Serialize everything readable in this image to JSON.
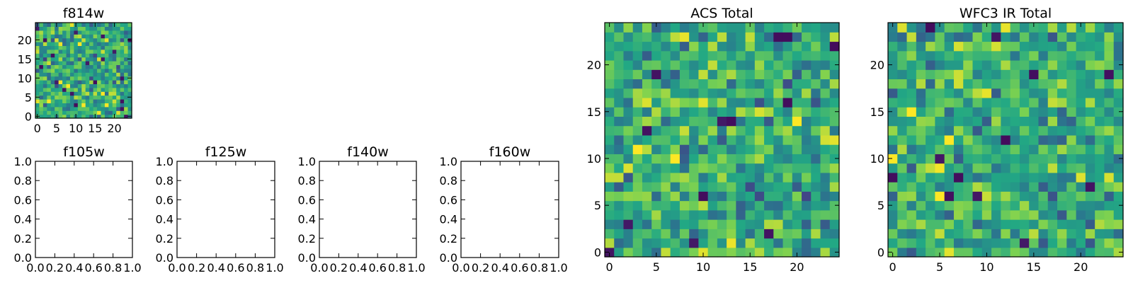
{
  "figure": {
    "panels": [
      {
        "id": "f814w",
        "title": "f814w",
        "kind": "image",
        "xticks": [
          "0",
          "5",
          "10",
          "15",
          "20"
        ],
        "yticks": [
          "0",
          "5",
          "10",
          "15",
          "20"
        ]
      },
      {
        "id": "f105w",
        "title": "f105w",
        "kind": "empty",
        "xticks": [
          "0.0",
          "0.2",
          "0.4",
          "0.6",
          "0.8",
          "1.0"
        ],
        "yticks": [
          "0.0",
          "0.2",
          "0.4",
          "0.6",
          "0.8",
          "1.0"
        ]
      },
      {
        "id": "f125w",
        "title": "f125w",
        "kind": "empty",
        "xticks": [
          "0.0",
          "0.2",
          "0.4",
          "0.6",
          "0.8",
          "1.0"
        ],
        "yticks": [
          "0.0",
          "0.2",
          "0.4",
          "0.6",
          "0.8",
          "1.0"
        ]
      },
      {
        "id": "f140w",
        "title": "f140w",
        "kind": "empty",
        "xticks": [
          "0.0",
          "0.2",
          "0.4",
          "0.6",
          "0.8",
          "1.0"
        ],
        "yticks": [
          "0.0",
          "0.2",
          "0.4",
          "0.6",
          "0.8",
          "1.0"
        ]
      },
      {
        "id": "f160w",
        "title": "f160w",
        "kind": "empty",
        "xticks": [
          "0.0",
          "0.2",
          "0.4",
          "0.6",
          "0.8",
          "1.0"
        ],
        "yticks": [
          "0.0",
          "0.2",
          "0.4",
          "0.6",
          "0.8",
          "1.0"
        ]
      },
      {
        "id": "acs_total",
        "title": "ACS Total",
        "kind": "image",
        "xticks": [
          "0",
          "5",
          "10",
          "15",
          "20"
        ],
        "yticks": [
          "0",
          "5",
          "10",
          "15",
          "20"
        ]
      },
      {
        "id": "wfc3_total",
        "title": "WFC3 IR Total",
        "kind": "image",
        "xticks": [
          "0",
          "5",
          "10",
          "15",
          "20"
        ],
        "yticks": [
          "0",
          "5",
          "10",
          "15",
          "20"
        ]
      }
    ]
  },
  "chart_data": [
    {
      "type": "heatmap",
      "title": "f814w",
      "grid_size": [
        25,
        25
      ],
      "xlim": [
        -0.5,
        24.5
      ],
      "ylim": [
        -0.5,
        24.5
      ],
      "colormap": "viridis",
      "values": "random noise (pixel values not legible)"
    },
    {
      "type": "line",
      "title": "f105w",
      "series": [],
      "xlim": [
        0,
        1
      ],
      "ylim": [
        0,
        1
      ]
    },
    {
      "type": "line",
      "title": "f125w",
      "series": [],
      "xlim": [
        0,
        1
      ],
      "ylim": [
        0,
        1
      ]
    },
    {
      "type": "line",
      "title": "f140w",
      "series": [],
      "xlim": [
        0,
        1
      ],
      "ylim": [
        0,
        1
      ]
    },
    {
      "type": "line",
      "title": "f160w",
      "series": [],
      "xlim": [
        0,
        1
      ],
      "ylim": [
        0,
        1
      ]
    },
    {
      "type": "heatmap",
      "title": "ACS Total",
      "grid_size": [
        25,
        25
      ],
      "xlim": [
        -0.5,
        24.5
      ],
      "ylim": [
        -0.5,
        24.5
      ],
      "colormap": "viridis",
      "values": "random noise (pixel values not legible)"
    },
    {
      "type": "heatmap",
      "title": "WFC3 IR Total",
      "grid_size": [
        25,
        25
      ],
      "xlim": [
        -0.5,
        24.5
      ],
      "ylim": [
        -0.5,
        24.5
      ],
      "colormap": "viridis",
      "values": "random noise (pixel values not legible)"
    }
  ],
  "colors": {
    "viridis": [
      "#440154",
      "#414487",
      "#2a788e",
      "#22a884",
      "#7ad151",
      "#fde725"
    ],
    "axis": "#000000",
    "background": "#ffffff"
  }
}
